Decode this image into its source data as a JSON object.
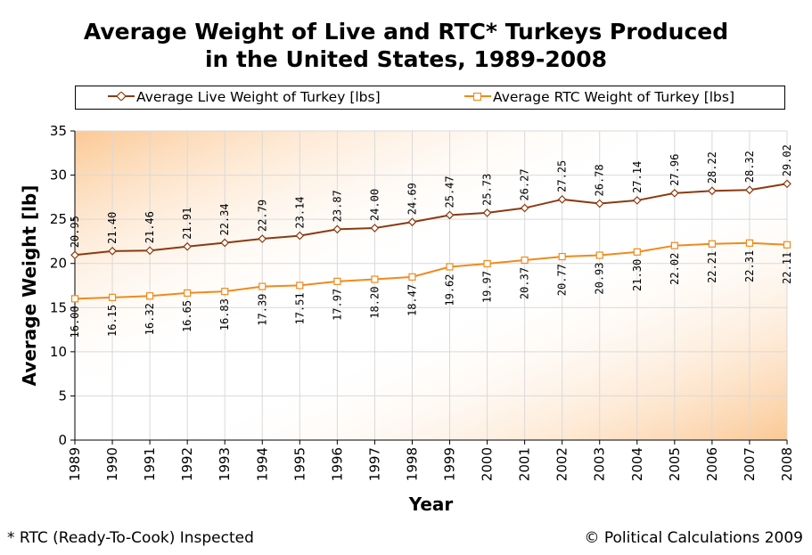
{
  "title_line1": "Average Weight of Live and RTC* Turkeys Produced",
  "title_line2": "in the United States, 1989-2008",
  "footnote": "* RTC (Ready-To-Cook) Inspected",
  "credit": "© Political Calculations 2009",
  "colors": {
    "live": "#8B3A0F",
    "rtc": "#F08A1C",
    "grid": "#D9D9D9",
    "gradient_edge": "#FBC894"
  },
  "chart_data": {
    "type": "line",
    "xlabel": "Year",
    "ylabel": "Average Weight [lb]",
    "ylim": [
      0,
      35
    ],
    "yticks": [
      "0",
      "5",
      "10",
      "15",
      "20",
      "25",
      "30",
      "35"
    ],
    "grid": true,
    "legend_position": "top",
    "categories": [
      "1989",
      "1990",
      "1991",
      "1992",
      "1993",
      "1994",
      "1995",
      "1996",
      "1997",
      "1998",
      "1999",
      "2000",
      "2001",
      "2002",
      "2003",
      "2004",
      "2005",
      "2006",
      "2007",
      "2008"
    ],
    "series": [
      {
        "name": "Average Live Weight of Turkey [lbs]",
        "marker": "diamond",
        "values": [
          20.95,
          21.4,
          21.46,
          21.91,
          22.34,
          22.79,
          23.14,
          23.87,
          24.0,
          24.69,
          25.47,
          25.73,
          26.27,
          27.25,
          26.78,
          27.14,
          27.96,
          28.22,
          28.32,
          29.02
        ],
        "labels": [
          "20.95",
          "21.40",
          "21.46",
          "21.91",
          "22.34",
          "22.79",
          "23.14",
          "23.87",
          "24.00",
          "24.69",
          "25.47",
          "25.73",
          "26.27",
          "27.25",
          "26.78",
          "27.14",
          "27.96",
          "28.22",
          "28.32",
          "29.02"
        ]
      },
      {
        "name": "Average RTC Weight of Turkey [lbs]",
        "marker": "square",
        "values": [
          16.0,
          16.15,
          16.32,
          16.65,
          16.83,
          17.39,
          17.51,
          17.97,
          18.2,
          18.47,
          19.62,
          19.97,
          20.37,
          20.77,
          20.93,
          21.3,
          22.02,
          22.21,
          22.31,
          22.11
        ],
        "labels": [
          "16.00",
          "16.15",
          "16.32",
          "16.65",
          "16.83",
          "17.39",
          "17.51",
          "17.97",
          "18.20",
          "18.47",
          "19.62",
          "19.97",
          "20.37",
          "20.77",
          "20.93",
          "21.30",
          "22.02",
          "22.21",
          "22.31",
          "22.11"
        ]
      }
    ]
  }
}
